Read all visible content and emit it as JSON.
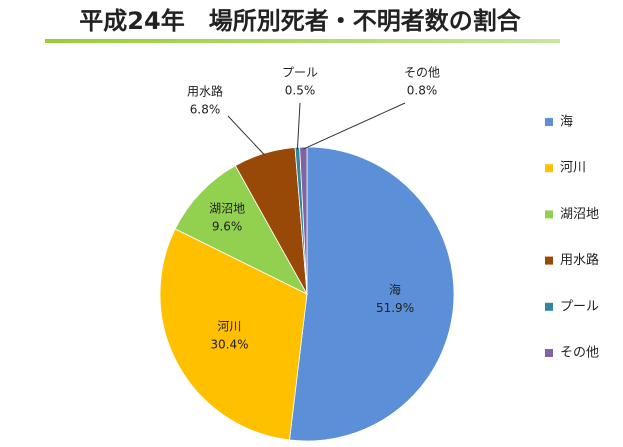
{
  "chart_data": {
    "type": "pie",
    "title": "平成24年　場所別死者・不明者数の割合",
    "categories": [
      "海",
      "河川",
      "湖沼地",
      "用水路",
      "プール",
      "その他"
    ],
    "values": [
      51.9,
      30.4,
      9.6,
      6.8,
      0.5,
      0.8
    ],
    "value_labels": [
      "51.9%",
      "30.4%",
      "9.6%",
      "6.8%",
      "0.5%",
      "0.8%"
    ],
    "colors": [
      "#5b8fd8",
      "#ffc000",
      "#92d050",
      "#984807",
      "#31859c",
      "#8064a2"
    ],
    "legend": "right"
  }
}
